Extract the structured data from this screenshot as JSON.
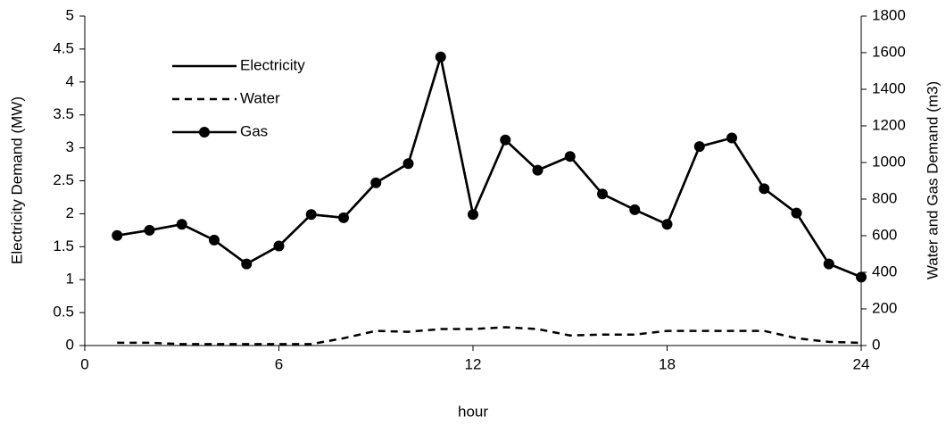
{
  "chart_data": {
    "type": "line",
    "xlabel": "hour",
    "ylabel": "Electricity Demand (MW)",
    "y2label": "Water and Gas Demand (m3)",
    "x": [
      1,
      2,
      3,
      4,
      5,
      6,
      7,
      8,
      9,
      10,
      11,
      12,
      13,
      14,
      15,
      16,
      17,
      18,
      19,
      20,
      21,
      22,
      23,
      24
    ],
    "xlim": [
      0,
      24
    ],
    "xticks": [
      0,
      6,
      12,
      18,
      24
    ],
    "ylim": [
      0,
      5
    ],
    "yticks": [
      0,
      0.5,
      1,
      1.5,
      2,
      2.5,
      3,
      3.5,
      4,
      4.5,
      5
    ],
    "y2lim": [
      0,
      1800
    ],
    "y2ticks": [
      0,
      200,
      400,
      600,
      800,
      1000,
      1200,
      1400,
      1600,
      1800
    ],
    "grid": false,
    "legend": "upper left",
    "series": [
      {
        "name": "Electricity",
        "color": "#000000",
        "linestyle": "solid",
        "axis": "y",
        "values": [
          1.67,
          1.75,
          1.84,
          1.6,
          1.24,
          1.51,
          1.99,
          1.94,
          2.47,
          2.76,
          4.38,
          1.99,
          3.12,
          2.66,
          2.87,
          2.3,
          2.06,
          1.84,
          3.02,
          3.15,
          2.38,
          2.01,
          1.24,
          1.04
        ]
      },
      {
        "name": "Water",
        "color": "#000000",
        "linestyle": "dashed",
        "axis": "y2",
        "values": [
          15,
          15,
          8,
          8,
          8,
          8,
          8,
          40,
          80,
          75,
          90,
          90,
          100,
          90,
          55,
          60,
          60,
          80,
          80,
          80,
          80,
          40,
          20,
          15
        ]
      },
      {
        "name": "Gas",
        "color": "#000000",
        "linestyle": "solid",
        "marker": "circle",
        "axis": "y2",
        "values": [
          601,
          630,
          662,
          576,
          446,
          544,
          716,
          698,
          889,
          994,
          1577,
          716,
          1123,
          958,
          1033,
          828,
          742,
          662,
          1087,
          1134,
          857,
          724,
          446,
          374
        ]
      }
    ]
  }
}
